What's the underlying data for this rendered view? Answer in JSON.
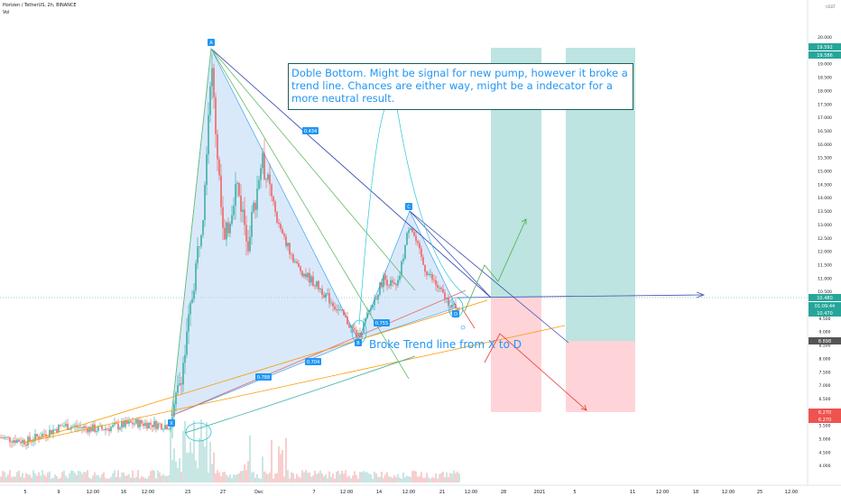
{
  "symbol_title": "Horizen / TetherUS, 2h, BINANCE",
  "volume_label": "Vol",
  "price_unit": "USDT",
  "note_text": "Doble Bottom. Might be signal for new pump, however it broke a trend line. Chances are either way, might be a indecator for a more neutral result.",
  "broke_text": "Broke Trend line from X to D",
  "points": {
    "x": "X",
    "a": "A",
    "b": "B",
    "c": "C",
    "d": "D"
  },
  "ratios": {
    "xa_bc": "0.434",
    "xb": "0.788",
    "xd": "0.704",
    "bd": "0.755"
  },
  "price_tags": {
    "target_top": "19.592",
    "target_bottom": "19.586",
    "current": "10.480",
    "countdown": "01:09:44",
    "entry": "10.470",
    "marker": "8.898",
    "stop_top": "6.270",
    "stop_bottom": "6.270"
  },
  "chart_data": {
    "type": "candlestick",
    "y_ticks": [
      {
        "v": 20.0,
        "label": "20.000"
      },
      {
        "v": 19.0,
        "label": "19.000"
      },
      {
        "v": 18.5,
        "label": "18.500"
      },
      {
        "v": 18.0,
        "label": "18.000"
      },
      {
        "v": 17.5,
        "label": "17.500"
      },
      {
        "v": 17.0,
        "label": "17.000"
      },
      {
        "v": 16.5,
        "label": "16.500"
      },
      {
        "v": 16.0,
        "label": "16.000"
      },
      {
        "v": 15.5,
        "label": "15.500"
      },
      {
        "v": 15.0,
        "label": "15.000"
      },
      {
        "v": 14.5,
        "label": "14.500"
      },
      {
        "v": 14.0,
        "label": "14.000"
      },
      {
        "v": 13.5,
        "label": "13.500"
      },
      {
        "v": 13.0,
        "label": "13.000"
      },
      {
        "v": 12.5,
        "label": "12.500"
      },
      {
        "v": 12.0,
        "label": "12.000"
      },
      {
        "v": 11.5,
        "label": "11.500"
      },
      {
        "v": 11.0,
        "label": "11.000"
      },
      {
        "v": 10.5,
        "label": "10.500"
      },
      {
        "v": 9.5,
        "label": "9.500"
      },
      {
        "v": 9.0,
        "label": "9.000"
      },
      {
        "v": 8.5,
        "label": "8.500"
      },
      {
        "v": 8.0,
        "label": "8.000"
      },
      {
        "v": 7.5,
        "label": "7.500"
      },
      {
        "v": 7.0,
        "label": "7.000"
      },
      {
        "v": 6.5,
        "label": "6.500"
      },
      {
        "v": 6.0,
        "label": "6.000"
      },
      {
        "v": 5.5,
        "label": "5.500"
      },
      {
        "v": 5.0,
        "label": "5.000"
      },
      {
        "v": 4.5,
        "label": "4.500"
      },
      {
        "v": 4.0,
        "label": "4.000"
      }
    ],
    "x_ticks": [
      "5",
      "9",
      "12:00",
      "16",
      "12:00",
      "23",
      "27",
      "Dec",
      "7",
      "12:00",
      "14",
      "12:00",
      "21",
      "12:00",
      "28",
      "2021",
      "5",
      "11",
      "12:00",
      "18",
      "12:00",
      "25",
      "12:00"
    ],
    "pattern": {
      "X": {
        "date": "Nov 20",
        "price": 5.89
      },
      "A": {
        "date": "Nov 25",
        "price": 19.7
      },
      "B": {
        "date": "Dec 10",
        "price": 9.2
      },
      "C": {
        "date": "Dec 18",
        "price": 13.65
      },
      "D": {
        "date": "Dec 22",
        "price": 10.1
      }
    },
    "long_positions": [
      {
        "target": 19.59,
        "entry": 10.47,
        "stop": 6.27
      },
      {
        "target": 19.59,
        "entry": 8.9,
        "stop": 6.27
      }
    ],
    "colors": {
      "up": "#26a69a",
      "down": "#ef5350",
      "pattern_fill": "#b3d4f5",
      "profit_zone": "#b2dfdb",
      "loss_zone": "#ffcdd2",
      "accent": "#2196f3"
    }
  }
}
